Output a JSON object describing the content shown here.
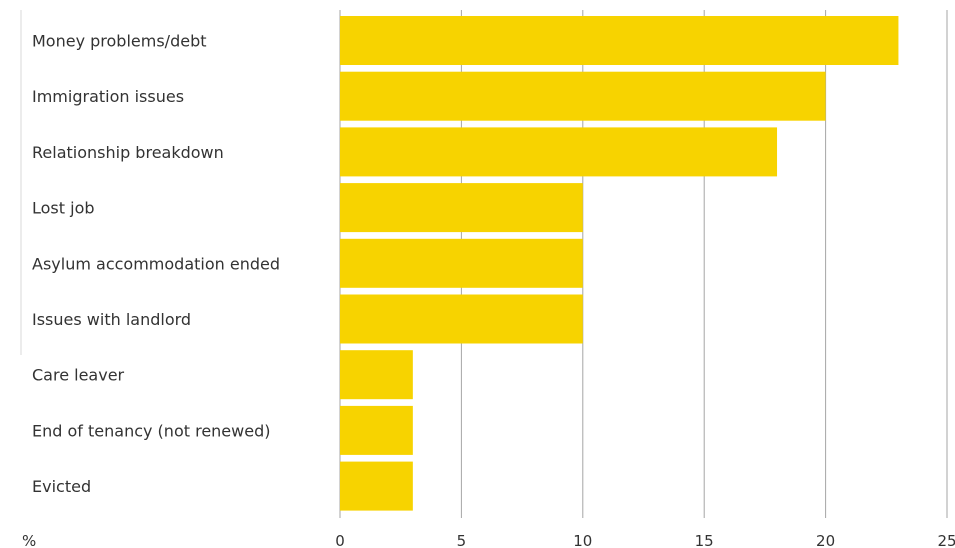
{
  "chart_data": {
    "type": "bar",
    "orientation": "horizontal",
    "categories": [
      "Money problems/debt",
      "Immigration issues",
      "Relationship breakdown",
      "Lost job",
      "Asylum accommodation ended",
      "Issues with landlord",
      "Care leaver",
      "End of tenancy (not renewed)",
      "Evicted"
    ],
    "values": [
      23,
      20,
      18,
      10,
      10,
      10,
      3,
      3,
      3
    ],
    "xlim": [
      0,
      25
    ],
    "xticks": [
      0,
      5,
      10,
      15,
      20,
      25
    ],
    "unit_label": "%",
    "grid": "vertical",
    "bar_color": "#f7d300",
    "grid_color": "#a6a6a6"
  }
}
